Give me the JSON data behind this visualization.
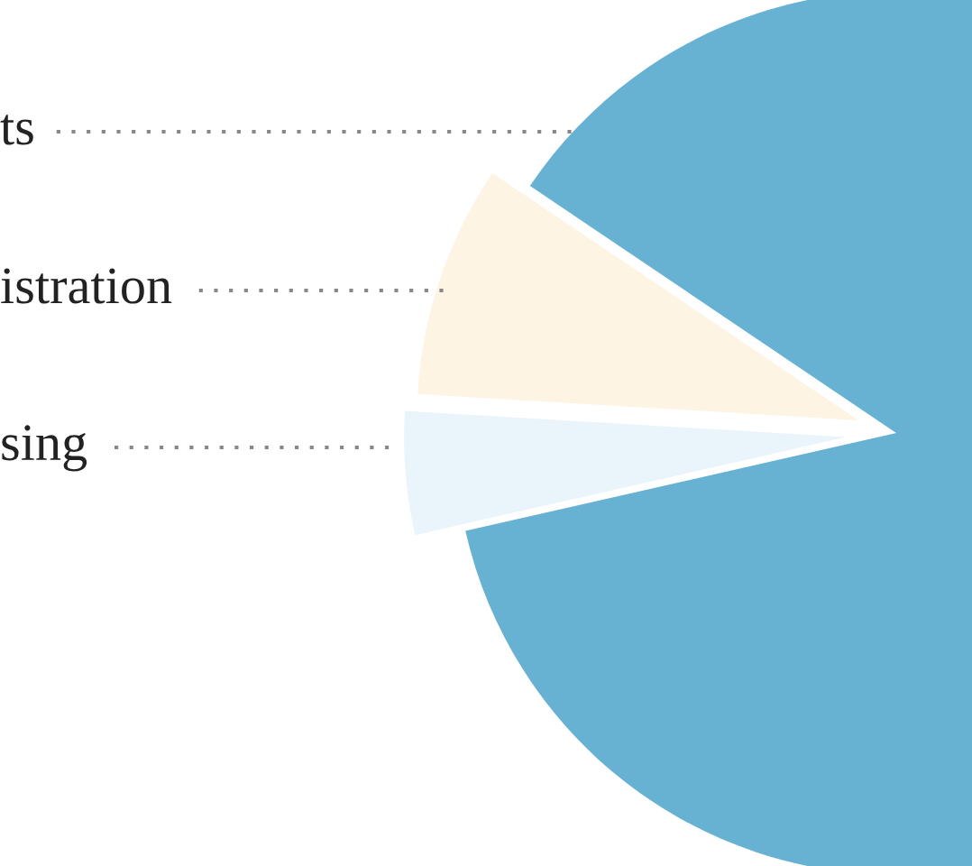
{
  "chart_data": {
    "type": "pie",
    "categories": [
      "ts",
      "istration",
      "sing"
    ],
    "values": [
      87,
      8.5,
      4.5
    ],
    "colors": [
      "#67b2d3",
      "#fdf4e3",
      "#eaf4fb"
    ],
    "legend": false
  }
}
